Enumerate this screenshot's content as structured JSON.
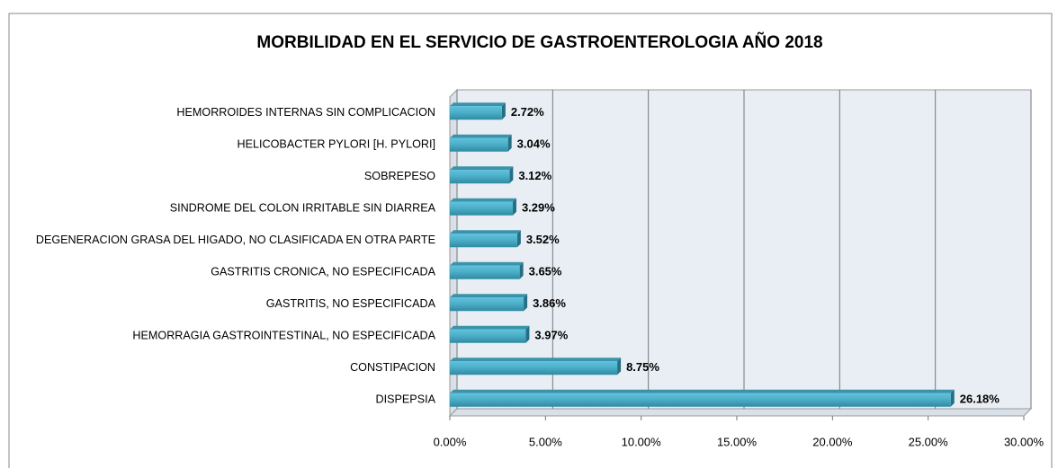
{
  "chart_data": {
    "type": "barh",
    "title": "MORBILIDAD EN EL SERVICIO DE GASTROENTEROLOGIA AÑO 2018",
    "categories": [
      "HEMORROIDES INTERNAS SIN COMPLICACION",
      "HELICOBACTER PYLORI [H. PYLORI]",
      "SOBREPESO",
      "SINDROME DEL COLON IRRITABLE SIN DIARREA",
      "DEGENERACION GRASA DEL HIGADO, NO CLASIFICADA EN OTRA PARTE",
      "GASTRITIS CRONICA, NO ESPECIFICADA",
      "GASTRITIS, NO ESPECIFICADA",
      "HEMORRAGIA GASTROINTESTINAL, NO ESPECIFICADA",
      "CONSTIPACION",
      "DISPEPSIA"
    ],
    "values": [
      2.72,
      3.04,
      3.12,
      3.29,
      3.52,
      3.65,
      3.86,
      3.97,
      8.75,
      26.18
    ],
    "value_labels": [
      "2.72%",
      "3.04%",
      "3.12%",
      "3.29%",
      "3.52%",
      "3.65%",
      "3.86%",
      "3.97%",
      "8.75%",
      "26.18%"
    ],
    "color": "#4bacc6",
    "xlim": [
      0,
      30
    ],
    "xticks": [
      {
        "value": 0,
        "label": "0.00%"
      },
      {
        "value": 5,
        "label": "5.00%"
      },
      {
        "value": 10,
        "label": "10.00%"
      },
      {
        "value": 15,
        "label": "15.00%"
      },
      {
        "value": 20,
        "label": "20.00%"
      },
      {
        "value": 25,
        "label": "25.00%"
      },
      {
        "value": 30,
        "label": "30.00%"
      }
    ],
    "grid": true
  }
}
